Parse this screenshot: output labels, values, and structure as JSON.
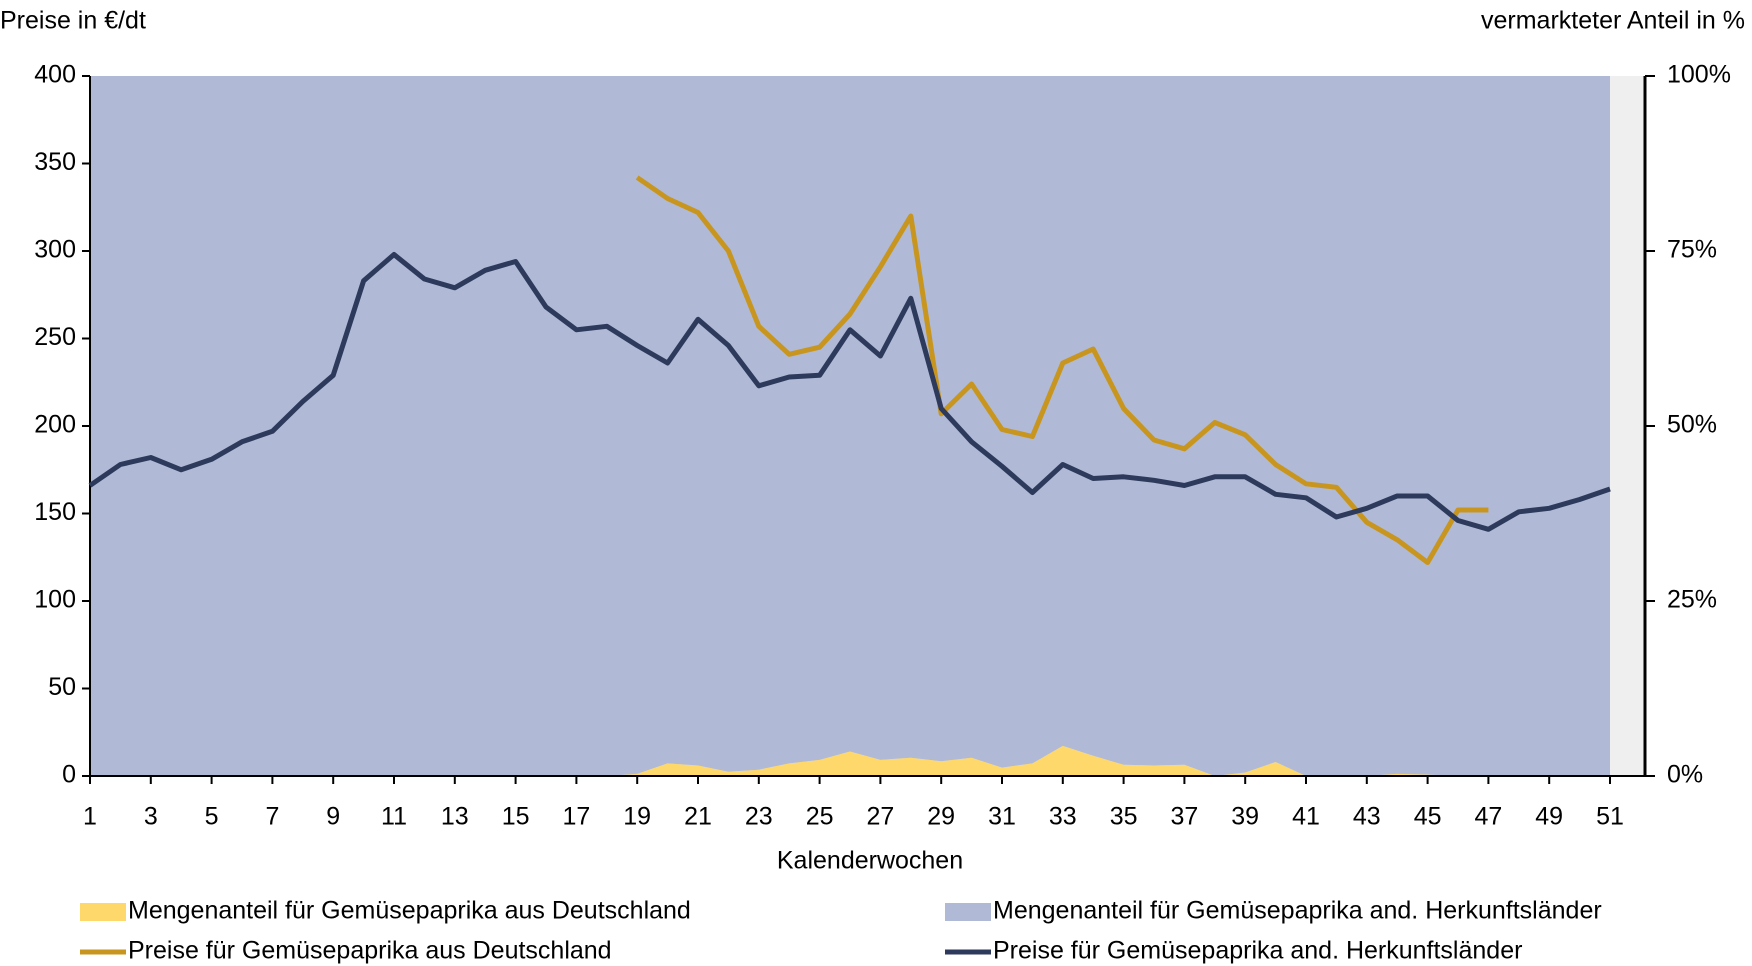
{
  "chart_data": {
    "type": "line",
    "y_label": "Preise in €/dt",
    "y2_label": "vermarkteter Anteil in %",
    "x_label": "Kalenderwochen",
    "x": [
      1,
      2,
      3,
      4,
      5,
      6,
      7,
      8,
      9,
      10,
      11,
      12,
      13,
      14,
      15,
      16,
      17,
      18,
      19,
      20,
      21,
      22,
      23,
      24,
      25,
      26,
      27,
      28,
      29,
      30,
      31,
      32,
      33,
      34,
      35,
      36,
      37,
      38,
      39,
      40,
      41,
      42,
      43,
      44,
      45,
      46,
      47,
      48,
      49,
      50,
      51
    ],
    "xlim": [
      1,
      51
    ],
    "xticks": [
      1,
      3,
      5,
      7,
      9,
      11,
      13,
      15,
      17,
      19,
      21,
      23,
      25,
      27,
      29,
      31,
      33,
      35,
      37,
      39,
      41,
      43,
      45,
      47,
      49,
      51
    ],
    "ylim": [
      0,
      400
    ],
    "yticks": [
      0,
      50,
      100,
      150,
      200,
      250,
      300,
      350,
      400
    ],
    "y2lim": [
      0,
      100
    ],
    "y2ticks": [
      {
        "value": 0,
        "label": "0%"
      },
      {
        "value": 25,
        "label": "25%"
      },
      {
        "value": 50,
        "label": "50%"
      },
      {
        "value": 75,
        "label": "75%"
      },
      {
        "value": 100,
        "label": "100%"
      }
    ],
    "stacked": true,
    "background": "#efefef",
    "series": [
      {
        "name": "Mengenanteil für Gemüsepaprika aus Deutschland",
        "type": "area",
        "axis": "y2",
        "color": "#ffd86b",
        "values": [
          0,
          0,
          0,
          0,
          0,
          0,
          0,
          0,
          0,
          0,
          0,
          0,
          0,
          0,
          0,
          0,
          0,
          0,
          0.3,
          1.8,
          1.5,
          0.6,
          0.9,
          1.8,
          2.3,
          3.5,
          2.3,
          2.6,
          2.1,
          2.6,
          1.2,
          1.8,
          4.3,
          2.9,
          1.6,
          1.5,
          1.6,
          0,
          0.5,
          2,
          0,
          0,
          0,
          0.3,
          0.2,
          0,
          0,
          0,
          0,
          0,
          0
        ]
      },
      {
        "name": "Mengenanteil für Gemüsepaprika and. Herkunftsländer",
        "type": "area",
        "axis": "y2",
        "color": "#b0b9d6",
        "values": [
          100,
          100,
          100,
          100,
          100,
          100,
          100,
          100,
          100,
          100,
          100,
          100,
          100,
          100,
          100,
          100,
          100,
          100,
          99.7,
          98.2,
          98.5,
          99.4,
          99.1,
          98.2,
          97.7,
          96.5,
          97.7,
          97.4,
          97.9,
          97.4,
          98.8,
          98.2,
          95.7,
          97.1,
          98.4,
          98.5,
          98.4,
          100,
          99.5,
          98,
          100,
          100,
          100,
          99.7,
          99.8,
          100,
          100,
          100,
          100,
          100,
          100
        ]
      },
      {
        "name": "Preise für Gemüsepaprika aus Deutschland",
        "type": "line",
        "color": "#c8961e",
        "values": [
          null,
          null,
          null,
          null,
          null,
          null,
          null,
          null,
          null,
          null,
          null,
          null,
          null,
          null,
          null,
          null,
          null,
          null,
          342,
          330,
          322,
          300,
          257,
          241,
          245,
          264,
          291,
          320,
          207,
          224,
          198,
          194,
          236,
          244,
          210,
          192,
          187,
          202,
          195,
          178,
          167,
          165,
          145,
          135,
          122,
          152,
          152,
          null,
          null,
          null,
          null
        ]
      },
      {
        "name": "Preise für Gemüsepaprika and. Herkunftsländer",
        "type": "line",
        "color": "#2e3a5c",
        "values": [
          166,
          178,
          182,
          175,
          181,
          191,
          197,
          214,
          229,
          283,
          298,
          284,
          279,
          289,
          294,
          268,
          255,
          257,
          246,
          236,
          261,
          246,
          223,
          228,
          229,
          255,
          240,
          273,
          210,
          191,
          177,
          162,
          178,
          170,
          171,
          169,
          166,
          171,
          171,
          161,
          159,
          148,
          153,
          160,
          160,
          146,
          141,
          151,
          153,
          158,
          164
        ]
      }
    ]
  }
}
